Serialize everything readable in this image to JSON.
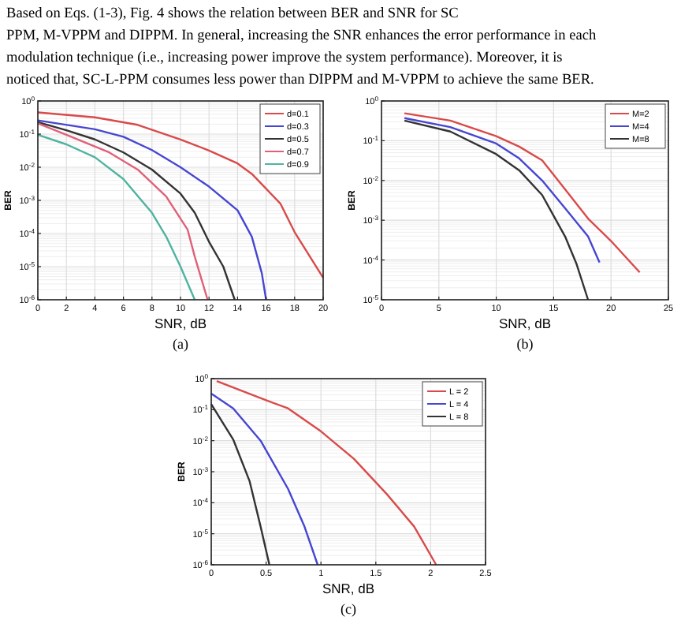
{
  "chart_data": [
    {
      "type": "line",
      "xlabel": "SNR, dB",
      "ylabel": "BER",
      "log": "y",
      "grid": true,
      "legend": "top right",
      "line_style": "solid",
      "annotations": [
        "Based on Eqs. (1-3), Fig. 4 shows the relation between BER and SNR for SC",
        "PPM, M-VPPM and DIPPM. In general, increasing the SNR enhances the error performance in each",
        "modulation technique (i.e., increasing power improve the system performance). Moreover, it is",
        "noticed that, SC-L-PPM consumes less power than DIPPM and M-VPPM to achieve the same BER.",
        "(a)"
      ],
      "xlim": [
        0,
        20
      ],
      "xticks": [
        0,
        2,
        4,
        6,
        8,
        10,
        12,
        14,
        16,
        18,
        20
      ],
      "ylim": [
        1e-06,
        1
      ],
      "yticks": [
        {
          "value": 1e-06,
          "label": "10$^{-6}$"
        },
        {
          "value": 1e-05,
          "label": "10$^{-5}$"
        },
        {
          "value": 0.0001,
          "label": "10$^{-4}$"
        },
        {
          "value": 0.001,
          "label": "10$^{-3}$"
        },
        {
          "value": 0.01,
          "label": "10$^{-2}$"
        },
        {
          "value": 0.1,
          "label": "10$^{-1}$"
        },
        {
          "value": 1,
          "label": "10$^{0}$"
        }
      ],
      "series": [
        {
          "name": "d=0.1",
          "color": "#d94a4a",
          "x": [
            0,
            4,
            7,
            10,
            12,
            14,
            15,
            17,
            18,
            20
          ],
          "values": [
            0.45,
            0.32,
            0.19,
            0.069,
            0.032,
            0.013,
            0.0063,
            0.0008,
            0.00011,
            4.6e-06
          ]
        },
        {
          "name": "d=0.3",
          "color": "#4646d2",
          "x": [
            0,
            4,
            6,
            8,
            10,
            12,
            14,
            15,
            15.7,
            16
          ],
          "values": [
            0.26,
            0.14,
            0.083,
            0.033,
            0.01,
            0.0026,
            0.0005,
            8e-05,
            6.3e-06,
            1e-06
          ]
        },
        {
          "name": "d=0.5",
          "color": "#333333",
          "x": [
            0,
            2,
            4,
            6,
            8,
            10,
            11,
            12,
            13,
            13.8
          ],
          "values": [
            0.23,
            0.13,
            0.069,
            0.028,
            0.0085,
            0.0016,
            0.00042,
            5.6e-05,
            1e-05,
            1e-06
          ]
        },
        {
          "name": "d=0.7",
          "color": "#e0607a",
          "x": [
            0,
            2,
            5,
            7,
            9,
            10.5,
            11,
            11.9
          ],
          "values": [
            0.21,
            0.095,
            0.028,
            0.0085,
            0.0013,
            0.00013,
            2e-05,
            1e-06
          ]
        },
        {
          "name": "d=0.9",
          "color": "#4fb3a0",
          "x": [
            0,
            2,
            4,
            6,
            8,
            9,
            10,
            11
          ],
          "values": [
            0.095,
            0.049,
            0.02,
            0.0044,
            0.00042,
            8e-05,
            1e-05,
            1e-06
          ]
        }
      ]
    },
    {
      "type": "line",
      "xlabel": "SNR, dB",
      "ylabel": "BER",
      "log": "y",
      "grid": true,
      "legend": "top right",
      "line_style": "solid",
      "annotations": [
        "(b)"
      ],
      "xlim": [
        0,
        25
      ],
      "xticks": [
        0,
        5,
        10,
        15,
        20,
        25
      ],
      "ylim": [
        1e-05,
        1
      ],
      "yticks": [
        {
          "value": 1e-05,
          "label": "10$^{-5}$"
        },
        {
          "value": 0.0001,
          "label": "10$^{-4}$"
        },
        {
          "value": 0.001,
          "label": "10$^{-3}$"
        },
        {
          "value": 0.01,
          "label": "10$^{-2}$"
        },
        {
          "value": 0.1,
          "label": "10$^{-1}$"
        },
        {
          "value": 1,
          "label": "10$^{0}$"
        }
      ],
      "series": [
        {
          "name": "M=2",
          "color": "#d94a4a",
          "x": [
            2,
            6,
            10,
            12,
            14,
            16,
            18,
            20,
            22.5
          ],
          "values": [
            0.49,
            0.32,
            0.13,
            0.071,
            0.032,
            0.006,
            0.0011,
            0.0003,
            4.9e-05
          ]
        },
        {
          "name": "M=4",
          "color": "#4646d2",
          "x": [
            2,
            6,
            10,
            12,
            14,
            16,
            18,
            19
          ],
          "values": [
            0.37,
            0.22,
            0.085,
            0.036,
            0.01,
            0.002,
            0.00039,
            8.7e-05
          ]
        },
        {
          "name": "M=8",
          "color": "#333333",
          "x": [
            2,
            6,
            10,
            12,
            14,
            16,
            17,
            18
          ],
          "values": [
            0.32,
            0.17,
            0.046,
            0.018,
            0.0043,
            0.00039,
            7.9e-05,
            1e-05
          ]
        }
      ]
    },
    {
      "type": "line",
      "xlabel": "SNR, dB",
      "ylabel": "BER",
      "log": "y",
      "grid": true,
      "legend": "top right",
      "line_style": "solid",
      "annotations": [
        "(c)"
      ],
      "xlim": [
        0,
        2.5
      ],
      "xticks": [
        0,
        0.5,
        1,
        1.5,
        2,
        2.5
      ],
      "ylim": [
        1e-06,
        1
      ],
      "yticks": [
        {
          "value": 1e-06,
          "label": "10$^{-6}$"
        },
        {
          "value": 1e-05,
          "label": "10$^{-5}$"
        },
        {
          "value": 0.0001,
          "label": "10$^{-4}$"
        },
        {
          "value": 0.001,
          "label": "10$^{-3}$"
        },
        {
          "value": 0.01,
          "label": "10$^{-2}$"
        },
        {
          "value": 0.1,
          "label": "10$^{-1}$"
        },
        {
          "value": 1,
          "label": "10$^{0}$"
        }
      ],
      "series": [
        {
          "name": "L = 2",
          "color": "#d94a4a",
          "x": [
            0.05,
            0.5,
            0.7,
            1,
            1.3,
            1.6,
            1.85,
            2.05
          ],
          "values": [
            0.83,
            0.2,
            0.11,
            0.02,
            0.0026,
            0.00019,
            1.7e-05,
            1e-06
          ]
        },
        {
          "name": "L = 4",
          "color": "#4646d2",
          "x": [
            0,
            0.2,
            0.45,
            0.7,
            0.85,
            0.97
          ],
          "values": [
            0.33,
            0.11,
            0.01,
            0.00028,
            1.7e-05,
            1e-06
          ]
        },
        {
          "name": "L = 8",
          "color": "#333333",
          "x": [
            0,
            0.2,
            0.35,
            0.45,
            0.53
          ],
          "values": [
            0.15,
            0.011,
            0.00049,
            1.7e-05,
            1e-06
          ]
        }
      ]
    }
  ]
}
